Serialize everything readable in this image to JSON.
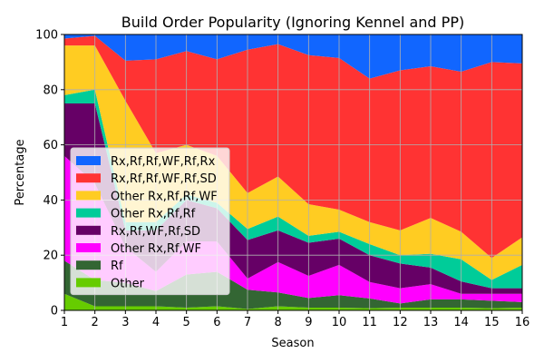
{
  "chart_data": {
    "type": "area",
    "title": "Build Order Popularity (Ignoring Kennel and PP)",
    "xlabel": "Season",
    "ylabel": "Percentage",
    "x": [
      1,
      2,
      3,
      4,
      5,
      6,
      7,
      8,
      9,
      10,
      11,
      12,
      13,
      14,
      15,
      16
    ],
    "xlim": [
      1,
      16
    ],
    "ylim": [
      0,
      100
    ],
    "x_ticks": [
      1,
      2,
      3,
      4,
      5,
      6,
      7,
      8,
      9,
      10,
      11,
      12,
      13,
      14,
      15,
      16
    ],
    "y_ticks": [
      0,
      20,
      40,
      60,
      80,
      100
    ],
    "grid": true,
    "stacked": true,
    "legend_position": "center-left",
    "series": [
      {
        "name": "Other",
        "color": "#66cc00",
        "values": [
          6.0,
          1.5,
          1.5,
          1.5,
          1.0,
          1.5,
          0.5,
          1.5,
          1.0,
          1.0,
          0.8,
          1.0,
          1.0,
          1.0,
          0.8,
          1.0
        ]
      },
      {
        "name": "Rf",
        "color": "#336633",
        "values": [
          12.0,
          9.5,
          8.5,
          5.5,
          12.0,
          12.5,
          7.0,
          5.0,
          3.5,
          4.5,
          3.5,
          1.5,
          3.0,
          3.0,
          2.7,
          2.0
        ]
      },
      {
        "name": "Other Rx,Rf,WF",
        "color": "#ff00ff",
        "values": [
          38.0,
          35.0,
          13.0,
          7.0,
          12.0,
          11.0,
          4.0,
          11.0,
          8.0,
          11.0,
          6.0,
          5.5,
          5.5,
          2.0,
          2.5,
          3.0
        ]
      },
      {
        "name": "Rx,Rf,WF,Rf,SD",
        "color": "#660066",
        "values": [
          19.0,
          29.0,
          6.0,
          15.0,
          15.0,
          12.0,
          14.0,
          11.5,
          12.0,
          9.5,
          9.7,
          9.0,
          6.0,
          4.5,
          2.0,
          2.0
        ]
      },
      {
        "name": "Other Rx,Rf,Rf",
        "color": "#00cc99",
        "values": [
          3.0,
          5.0,
          3.0,
          3.0,
          2.0,
          2.0,
          4.0,
          5.0,
          2.5,
          2.5,
          4.0,
          3.0,
          5.0,
          8.0,
          3.0,
          8.5
        ]
      },
      {
        "name": "Other Rx,Rf,Rf,WF",
        "color": "#ffcc22",
        "values": [
          18.0,
          16.0,
          44.0,
          25.0,
          18.0,
          17.0,
          13.0,
          14.5,
          11.5,
          8.0,
          8.0,
          9.0,
          13.0,
          10.0,
          8.0,
          10.0
        ]
      },
      {
        "name": "Rx,Rf,Rf,WF,Rf,SD",
        "color": "#ff3333",
        "values": [
          2.5,
          3.5,
          14.5,
          34.0,
          34.0,
          35.0,
          52.0,
          48.0,
          54.0,
          55.0,
          52.0,
          58.0,
          55.0,
          58.0,
          71.0,
          63.0
        ]
      },
      {
        "name": "Rx,Rf,Rf,WF,Rf,Rx",
        "color": "#1166ff",
        "values": [
          1.5,
          0.5,
          9.5,
          9.0,
          6.0,
          9.0,
          5.5,
          3.5,
          7.5,
          8.5,
          16.0,
          13.0,
          11.5,
          13.5,
          10.0,
          10.5
        ]
      }
    ]
  }
}
